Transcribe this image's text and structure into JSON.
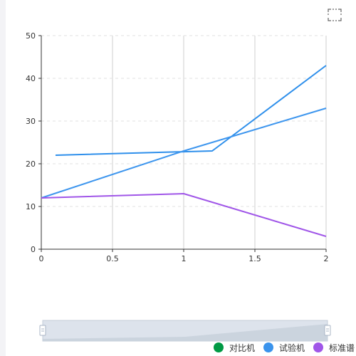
{
  "toolbox": {
    "icon": "fullscreen-icon"
  },
  "chart_data": {
    "type": "line",
    "title": "",
    "xlabel": "",
    "ylabel": "",
    "xlim": [
      0,
      2
    ],
    "ylim": [
      0,
      50
    ],
    "x_ticks": [
      0,
      0.5,
      1,
      1.5,
      2
    ],
    "y_ticks": [
      0,
      10,
      20,
      30,
      40,
      50
    ],
    "x_tick_labels": [
      "0",
      "0.5",
      "1",
      "1.5",
      "2"
    ],
    "y_tick_labels": [
      "0",
      "10",
      "20",
      "30",
      "40",
      "50"
    ],
    "grid": {
      "x": "solid",
      "y": "dashed"
    },
    "legend_position": "bottom-right",
    "series": [
      {
        "name": "对比机",
        "color": "#009944",
        "points": []
      },
      {
        "name": "试验机",
        "color": "#2E8FEB",
        "points": [
          [
            0.1,
            22
          ],
          [
            1.2,
            23
          ],
          [
            2,
            43
          ]
        ]
      },
      {
        "name": "试验机",
        "color": "#3E96EE",
        "points": [
          [
            0,
            12
          ],
          [
            1,
            23
          ],
          [
            2,
            33
          ]
        ]
      },
      {
        "name": "标准谱",
        "color": "#A056E8",
        "points": [
          [
            0,
            12
          ],
          [
            1,
            13
          ],
          [
            2,
            3
          ]
        ]
      }
    ]
  },
  "legend": {
    "items": [
      {
        "label": "对比机",
        "color": "#009944"
      },
      {
        "label": "试验机",
        "color": "#3A93EC"
      },
      {
        "label": "标准谱",
        "color": "#A056E8"
      }
    ]
  }
}
